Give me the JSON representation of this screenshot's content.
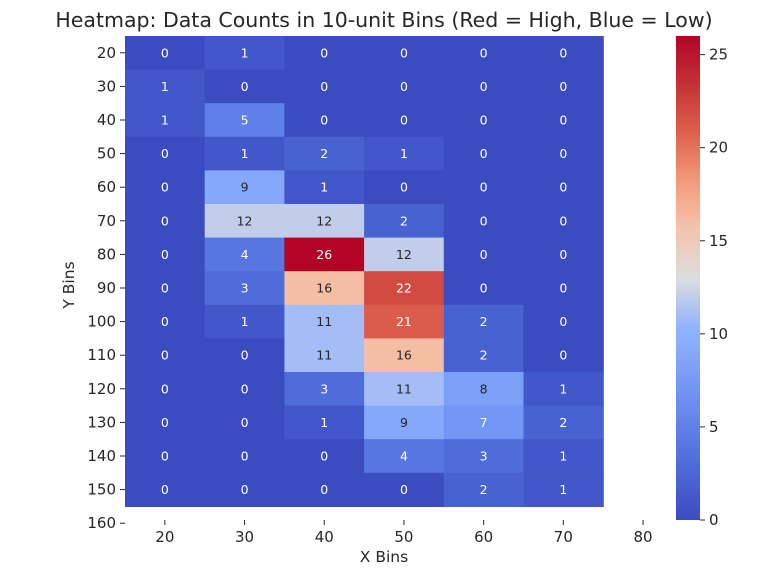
{
  "chart_data": {
    "type": "heatmap",
    "title": "Heatmap: Data Counts in 10-unit Bins (Red = High, Blue = Low)",
    "xlabel": "X Bins",
    "ylabel": "Y Bins",
    "x_tick_labels": [
      "20",
      "30",
      "40",
      "50",
      "60",
      "70",
      "80"
    ],
    "y_tick_labels": [
      "20",
      "30",
      "40",
      "50",
      "60",
      "70",
      "80",
      "90",
      "100",
      "110",
      "120",
      "130",
      "140",
      "150",
      "160"
    ],
    "x_columns": [
      20,
      30,
      40,
      50,
      60,
      70
    ],
    "y_rows": [
      20,
      30,
      40,
      50,
      60,
      70,
      80,
      90,
      100,
      110,
      120,
      130,
      140,
      150
    ],
    "values": [
      [
        0,
        1,
        0,
        0,
        0,
        0
      ],
      [
        1,
        0,
        0,
        0,
        0,
        0
      ],
      [
        1,
        5,
        0,
        0,
        0,
        0
      ],
      [
        0,
        1,
        2,
        1,
        0,
        0
      ],
      [
        0,
        9,
        1,
        0,
        0,
        0
      ],
      [
        0,
        12,
        12,
        2,
        0,
        0
      ],
      [
        0,
        4,
        26,
        12,
        0,
        0
      ],
      [
        0,
        3,
        16,
        22,
        0,
        0
      ],
      [
        0,
        1,
        11,
        21,
        2,
        0
      ],
      [
        0,
        0,
        11,
        16,
        2,
        0
      ],
      [
        0,
        0,
        3,
        11,
        8,
        1
      ],
      [
        0,
        0,
        1,
        9,
        7,
        2
      ],
      [
        0,
        0,
        0,
        4,
        3,
        1
      ],
      [
        0,
        0,
        0,
        0,
        2,
        1
      ]
    ],
    "colorbar": {
      "min": 0,
      "max": 26,
      "ticks": [
        0,
        5,
        10,
        15,
        20,
        25
      ]
    },
    "colormap": "coolwarm",
    "colors": {
      "low": "#3b4cc0",
      "mid": "#dddddd",
      "high": "#b40426"
    },
    "grid": false
  }
}
